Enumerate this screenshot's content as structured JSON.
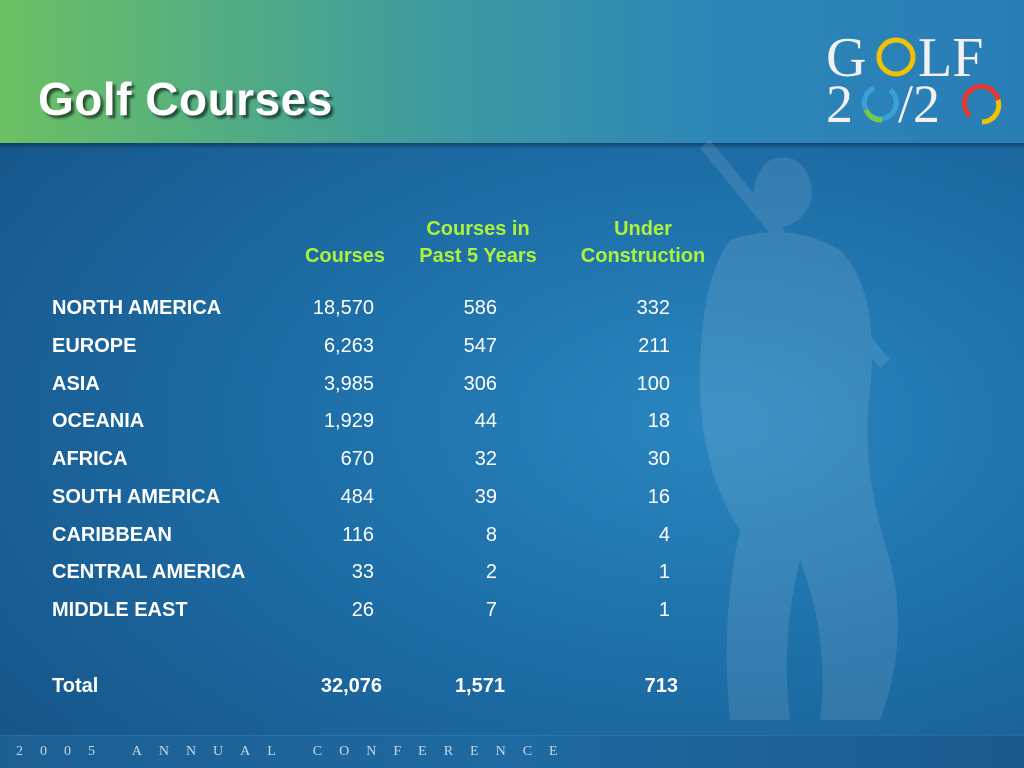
{
  "slide": {
    "title": "Golf Courses",
    "logo": {
      "line1": "GOLF",
      "line2": "2020"
    },
    "footer": "2005 ANNUAL CONFERENCE",
    "colors": {
      "header_green": "#6cc163",
      "accent_text": "#aef23a",
      "background": "#1e6fa8"
    }
  },
  "table": {
    "headers": {
      "courses": "Courses",
      "past5_line1": "Courses in",
      "past5_line2": "Past 5 Years",
      "under_line1": "Under",
      "under_line2": "Construction"
    },
    "rows": [
      {
        "region": "NORTH AMERICA",
        "courses": "18,570",
        "past5": "586",
        "under": "332"
      },
      {
        "region": "EUROPE",
        "courses": "6,263",
        "past5": "547",
        "under": "211"
      },
      {
        "region": "ASIA",
        "courses": "3,985",
        "past5": "306",
        "under": "100"
      },
      {
        "region": "OCEANIA",
        "courses": "1,929",
        "past5": "44",
        "under": "18"
      },
      {
        "region": "AFRICA",
        "courses": "670",
        "past5": "32",
        "under": "30"
      },
      {
        "region": "SOUTH AMERICA",
        "courses": "484",
        "past5": "39",
        "under": "16"
      },
      {
        "region": "CARIBBEAN",
        "courses": "116",
        "past5": "8",
        "under": "4"
      },
      {
        "region": "CENTRAL AMERICA",
        "courses": "33",
        "past5": "2",
        "under": "1"
      },
      {
        "region": "MIDDLE EAST",
        "courses": "26",
        "past5": "7",
        "under": "1"
      }
    ],
    "total": {
      "label": "Total",
      "courses": "32,076",
      "past5": "1,571",
      "under": "713"
    }
  }
}
